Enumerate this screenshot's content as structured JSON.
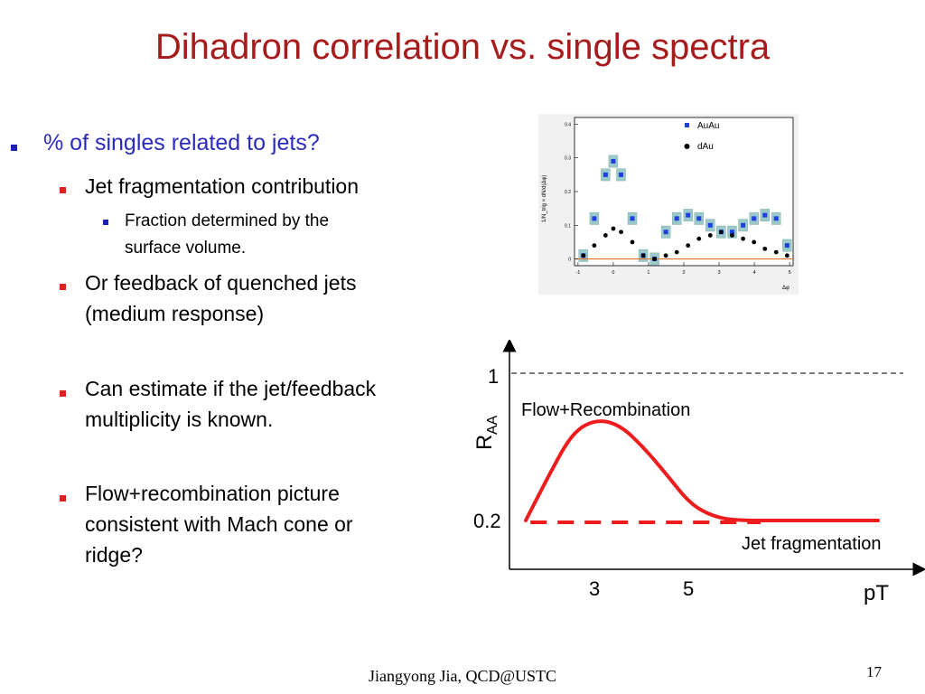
{
  "slide": {
    "title": "Dihadron correlation vs. single spectra",
    "footer": "Jiangyong Jia,  QCD@USTC",
    "page_number": "17"
  },
  "bullets": {
    "b1": "% of singles related to jets?",
    "b1_1": "Jet fragmentation contribution",
    "b1_1_1a": "Fraction determined by the",
    "b1_1_1b": "surface volume.",
    "b1_2a": "Or feedback of quenched jets",
    "b1_2b": "(medium response)",
    "b1_3a": "Can estimate if the jet/feedback",
    "b1_3b": "multiplicity is known.",
    "b1_4a": "Flow+recombination picture",
    "b1_4b": "consistent with Mach cone or",
    "b1_4c": "ridge?"
  },
  "correlation_plot": {
    "legend_auau": "AuAu",
    "legend_dau": "dAu",
    "ylabel": "1/N_trig × dN/d(Δφ)",
    "xlabel": "Δφ",
    "yticks": [
      "0",
      "0.1",
      "0.2",
      "0.3",
      "0.4"
    ],
    "xticks": [
      "-1",
      "0",
      "1",
      "2",
      "3",
      "4",
      "5"
    ],
    "colors": {
      "auau": "#1f3fe0",
      "dau": "#000000",
      "band": "#9cc9c9",
      "baseline": "#e07030"
    }
  },
  "chart_data": [
    {
      "type": "scatter",
      "title": "",
      "xlabel": "Δφ",
      "ylabel": "1/N_trig × dN/d(Δφ)",
      "xlim": [
        -1.1,
        5.1
      ],
      "ylim": [
        -0.02,
        0.42
      ],
      "grid": false,
      "legend": "top-right",
      "series": [
        {
          "name": "AuAu",
          "x": [
            -0.85,
            -0.54,
            -0.22,
            0.0,
            0.22,
            0.54,
            0.85,
            1.17,
            1.49,
            1.8,
            2.12,
            2.43,
            2.75,
            3.06,
            3.37,
            3.68,
            3.99,
            4.3,
            4.62,
            4.93
          ],
          "y": [
            0.01,
            0.12,
            0.25,
            0.29,
            0.25,
            0.12,
            0.01,
            0.0,
            0.08,
            0.12,
            0.13,
            0.12,
            0.1,
            0.08,
            0.08,
            0.1,
            0.12,
            0.13,
            0.12,
            0.04
          ]
        },
        {
          "name": "dAu",
          "x": [
            -0.85,
            -0.54,
            -0.22,
            0.0,
            0.22,
            0.54,
            0.85,
            1.17,
            1.49,
            1.8,
            2.12,
            2.43,
            2.75,
            3.06,
            3.37,
            3.68,
            3.99,
            4.3,
            4.62,
            4.93
          ],
          "y": [
            0.01,
            0.04,
            0.07,
            0.09,
            0.08,
            0.05,
            0.01,
            0.0,
            0.01,
            0.02,
            0.04,
            0.06,
            0.07,
            0.08,
            0.07,
            0.06,
            0.05,
            0.03,
            0.02,
            0.01
          ]
        }
      ]
    },
    {
      "type": "line",
      "title": "",
      "xlabel": "pT",
      "ylabel": "R_AA",
      "ylabel_main": "R",
      "ylabel_sub": "AA",
      "ytick_labels": [
        "1",
        "0.2"
      ],
      "xtick_labels": [
        "3",
        "5"
      ],
      "annotations": [
        "Flow+Recombination",
        "Jet fragmentation"
      ],
      "series": [
        {
          "name": "Flow+Recombination",
          "x": [
            1.5,
            2.0,
            2.5,
            3.0,
            3.5,
            4.0,
            4.5,
            5.0,
            5.5,
            6.0,
            7.0,
            8.0,
            9.0
          ],
          "y": [
            0.2,
            0.45,
            0.68,
            0.75,
            0.72,
            0.6,
            0.45,
            0.29,
            0.22,
            0.2,
            0.2,
            0.2,
            0.2
          ]
        },
        {
          "name": "Jet fragmentation",
          "x": [
            1.6,
            6.5
          ],
          "y": [
            0.19,
            0.19
          ]
        }
      ],
      "reference_line": {
        "y": 1,
        "style": "dashed"
      }
    }
  ]
}
